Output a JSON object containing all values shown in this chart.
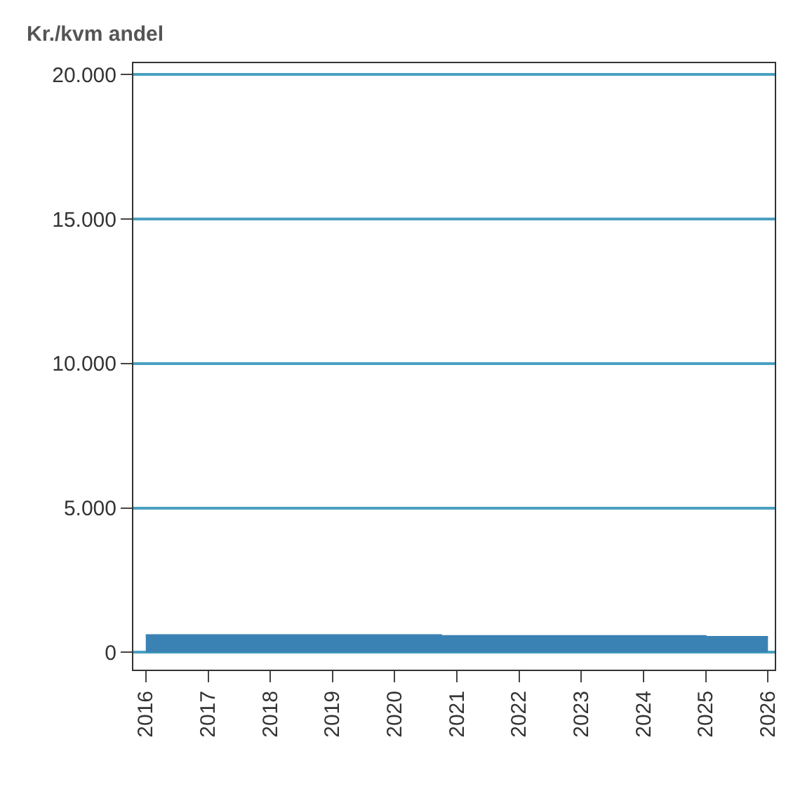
{
  "chart_data": {
    "type": "area",
    "ylabel": "Kr./kvm andel",
    "x": [
      "2016-01-01",
      "2020-10-01",
      "2025-01-01",
      "2026-01-01"
    ],
    "series": [
      {
        "color": "#3b82b4",
        "values": [
          600,
          570,
          540,
          540
        ]
      }
    ],
    "xlim": [
      "2015-10-20",
      "2026-02-10"
    ],
    "xticks": [
      {
        "value": "2016-01-01",
        "label": "2016"
      },
      {
        "value": "2017-01-01",
        "label": "2017"
      },
      {
        "value": "2018-01-01",
        "label": "2018"
      },
      {
        "value": "2019-01-01",
        "label": "2019"
      },
      {
        "value": "2020-01-01",
        "label": "2020"
      },
      {
        "value": "2021-01-01",
        "label": "2021"
      },
      {
        "value": "2022-01-01",
        "label": "2022"
      },
      {
        "value": "2023-01-01",
        "label": "2023"
      },
      {
        "value": "2024-01-01",
        "label": "2024"
      },
      {
        "value": "2025-01-01",
        "label": "2025"
      },
      {
        "value": "2026-01-01",
        "label": "2026"
      }
    ],
    "ylim": [
      -600,
      20400
    ],
    "yticks": [
      0,
      {
        "value": 5000,
        "label": "5.000"
      },
      {
        "value": 10000,
        "label": "10.000"
      },
      {
        "value": 15000,
        "label": "15.000"
      },
      {
        "value": 20000,
        "label": "20.000"
      }
    ],
    "grid": "y"
  }
}
